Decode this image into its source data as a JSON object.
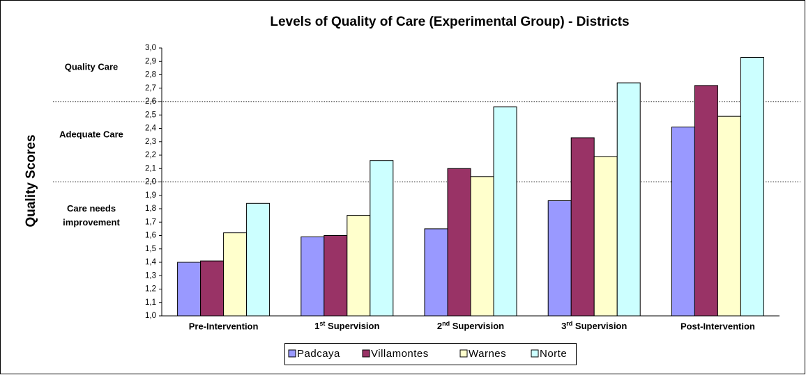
{
  "chart_data": {
    "type": "bar",
    "title": "Levels of Quality of Care (Experimental Group) - Districts",
    "y_label": "Quality Scores",
    "annotations": [
      "Quality Care",
      "Adequate Care",
      "Care needs improvement"
    ],
    "thresholds": [
      2.6,
      2.0
    ],
    "categories": [
      "Pre-Intervention",
      "1st Supervision",
      "2nd Supervision",
      "3rd Supervision",
      "Post-Intervention"
    ],
    "series": [
      {
        "name": "Padcaya",
        "color": "#9999ff",
        "values": [
          1.4,
          1.59,
          1.65,
          1.86,
          2.41
        ]
      },
      {
        "name": "Villamontes",
        "color": "#993366",
        "values": [
          1.41,
          1.6,
          2.1,
          2.33,
          2.72
        ]
      },
      {
        "name": "Warnes",
        "color": "#ffffcc",
        "values": [
          1.62,
          1.75,
          2.04,
          2.19,
          2.49
        ]
      },
      {
        "name": "Norte",
        "color": "#ccffff",
        "values": [
          1.84,
          2.16,
          2.56,
          2.74,
          2.93
        ]
      }
    ],
    "ylim": [
      1.0,
      3.0
    ],
    "yticks": [
      {
        "value": 1.0,
        "label": "1,0"
      },
      {
        "value": 1.1,
        "label": "1,1"
      },
      {
        "value": 1.2,
        "label": "1,2"
      },
      {
        "value": 1.3,
        "label": "1,3"
      },
      {
        "value": 1.4,
        "label": "1,4"
      },
      {
        "value": 1.5,
        "label": "1,5"
      },
      {
        "value": 1.6,
        "label": "1,6"
      },
      {
        "value": 1.7,
        "label": "1,7"
      },
      {
        "value": 1.8,
        "label": "1,8"
      },
      {
        "value": 1.9,
        "label": "1,9"
      },
      {
        "value": 2.0,
        "label": "2,0"
      },
      {
        "value": 2.1,
        "label": "2,1"
      },
      {
        "value": 2.2,
        "label": "2,2"
      },
      {
        "value": 2.3,
        "label": "2,3"
      },
      {
        "value": 2.4,
        "label": "2,4"
      },
      {
        "value": 2.5,
        "label": "2,5"
      },
      {
        "value": 2.6,
        "label": "2,6"
      },
      {
        "value": 2.7,
        "label": "2,7"
      },
      {
        "value": 2.8,
        "label": "2,8"
      },
      {
        "value": 2.9,
        "label": "2,9"
      },
      {
        "value": 3.0,
        "label": "3,0"
      }
    ],
    "legend": "bottom"
  }
}
